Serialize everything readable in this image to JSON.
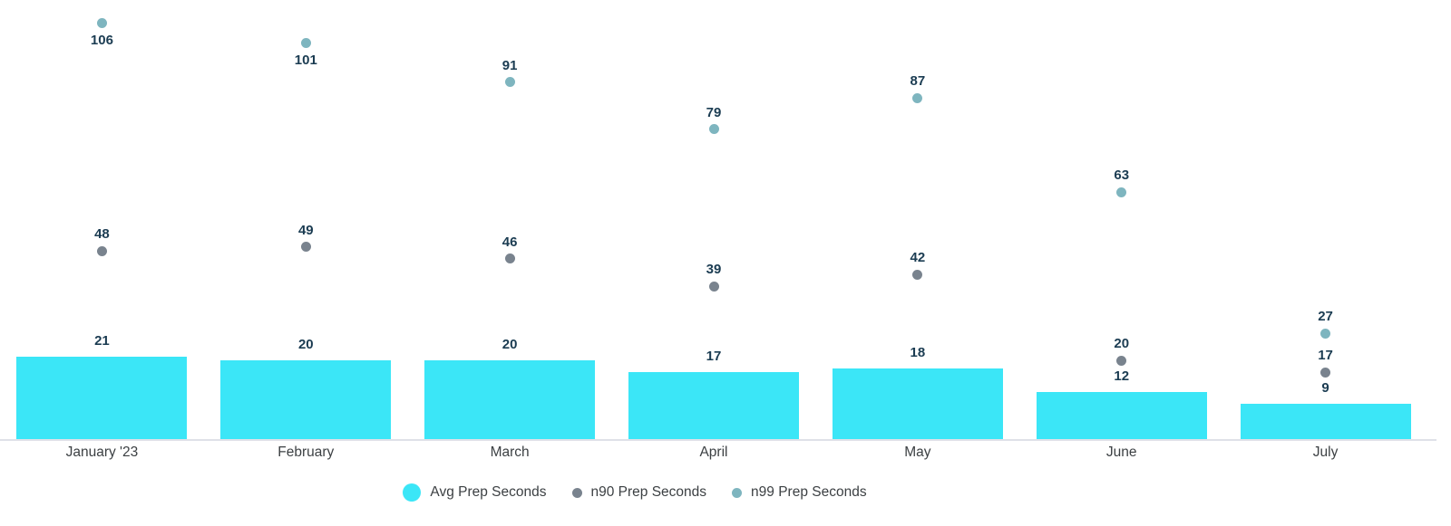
{
  "chart_data": {
    "type": "bar",
    "subtype": "combo-bar-and-points",
    "title": "",
    "xlabel": "",
    "ylabel": "",
    "categories": [
      "January '23",
      "February",
      "March",
      "April",
      "May",
      "June",
      "July"
    ],
    "series": [
      {
        "name": "Avg Prep Seconds",
        "render": "bar",
        "color": "#3be6f7",
        "values": [
          21,
          20,
          20,
          17,
          18,
          12,
          9
        ]
      },
      {
        "name": "n90 Prep Seconds",
        "render": "point",
        "color": "#79838e",
        "values": [
          48,
          49,
          46,
          39,
          42,
          20,
          17
        ]
      },
      {
        "name": "n99 Prep Seconds",
        "render": "point",
        "color": "#7eb5bf",
        "values": [
          106,
          101,
          91,
          79,
          87,
          63,
          27
        ]
      }
    ],
    "ylim": [
      0,
      112
    ],
    "grid": false,
    "y_axis_visible": false,
    "value_labels": true,
    "legend_position": "bottom",
    "colors": {
      "value_label": "#1b3c52",
      "axis_label": "#3c4043",
      "legend_label": "#3c4043",
      "axis_line": "#dfe1e8",
      "background": "#ffffff"
    }
  }
}
